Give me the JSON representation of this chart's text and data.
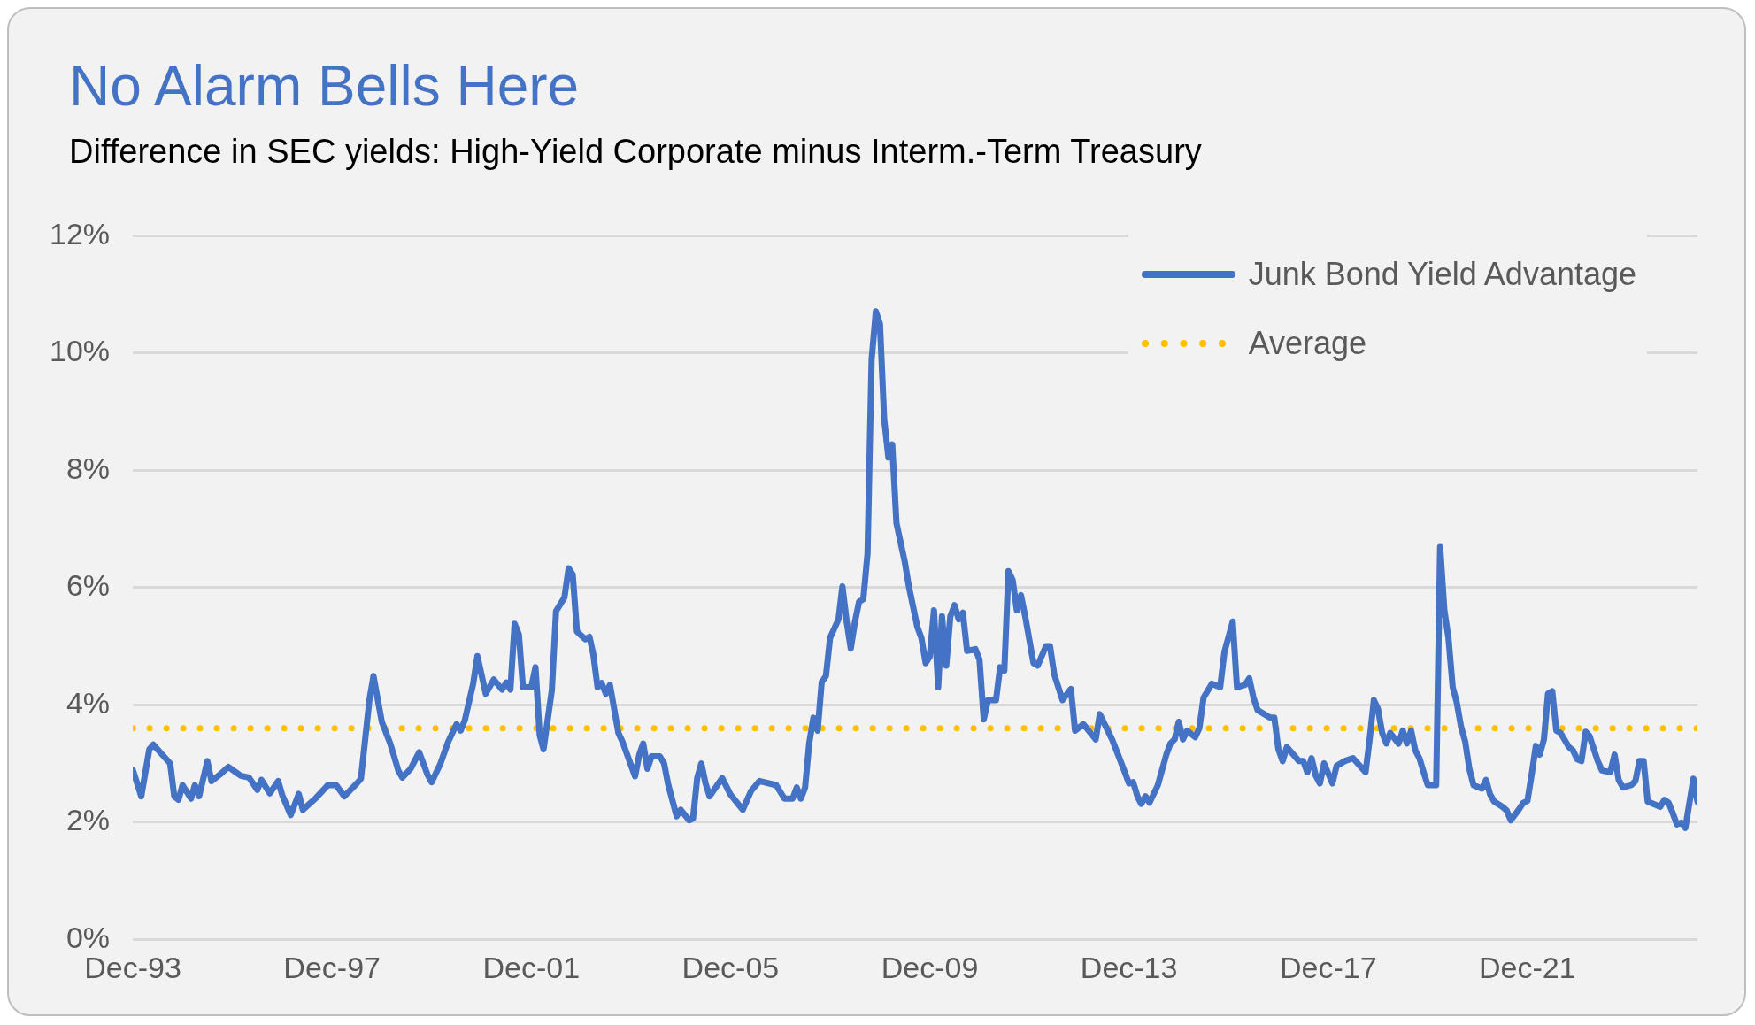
{
  "chart_data": {
    "type": "line",
    "title": "No Alarm Bells Here",
    "subtitle": "Difference in SEC yields: High-Yield Corporate minus Interm.-Term Treasury",
    "xlim": [
      "1993-12",
      "2025-05"
    ],
    "xticks": [
      {
        "value": "1993-12",
        "label": "Dec-93"
      },
      {
        "value": "1997-12",
        "label": "Dec-97"
      },
      {
        "value": "2001-12",
        "label": "Dec-01"
      },
      {
        "value": "2005-12",
        "label": "Dec-05"
      },
      {
        "value": "2009-12",
        "label": "Dec-09"
      },
      {
        "value": "2013-12",
        "label": "Dec-13"
      },
      {
        "value": "2017-12",
        "label": "Dec-17"
      },
      {
        "value": "2021-12",
        "label": "Dec-21"
      }
    ],
    "ylim": [
      0,
      12
    ],
    "yticks": [
      {
        "value": 0,
        "label": "0%"
      },
      {
        "value": 2,
        "label": "2%"
      },
      {
        "value": 4,
        "label": "4%"
      },
      {
        "value": 6,
        "label": "6%"
      },
      {
        "value": 8,
        "label": "8%"
      },
      {
        "value": 10,
        "label": "10%"
      },
      {
        "value": 12,
        "label": "12%"
      }
    ],
    "grid": "y",
    "legend": "top right",
    "marker": "none",
    "line_style": "solid",
    "ref_lines": [
      {
        "axis": "y",
        "value": 3.6,
        "label": "Average",
        "color": "#ffc000",
        "line_style": "dotted"
      }
    ],
    "series": [
      {
        "name": "Junk Bond Yield Advantage",
        "color": "#4472c4",
        "x": [
          "1993-12",
          "1994-02",
          "1994-04",
          "1994-05",
          "1994-09",
          "1994-10",
          "1994-11",
          "1994-12",
          "1995-02",
          "1995-03",
          "1995-04",
          "1995-06",
          "1995-07",
          "1995-09",
          "1995-11",
          "1996-02",
          "1996-04",
          "1996-06",
          "1996-07",
          "1996-09",
          "1996-11",
          "1996-12",
          "1997-02",
          "1997-04",
          "1997-05",
          "1997-08",
          "1997-11",
          "1998-01",
          "1998-03",
          "1998-06",
          "1998-07",
          "1998-09",
          "1998-10",
          "1998-12",
          "1999-02",
          "1999-04",
          "1999-05",
          "1999-07",
          "1999-09",
          "1999-11",
          "1999-12",
          "2000-02",
          "2000-04",
          "2000-06",
          "2000-07",
          "2000-08",
          "2000-10",
          "2000-11",
          "2001-01",
          "2001-03",
          "2001-05",
          "2001-06",
          "2001-07",
          "2001-08",
          "2001-09",
          "2001-10",
          "2001-12",
          "2002-01",
          "2002-02",
          "2002-03",
          "2002-05",
          "2002-06",
          "2002-08",
          "2002-09",
          "2002-10",
          "2002-11",
          "2003-01",
          "2003-02",
          "2003-03",
          "2003-04",
          "2003-05",
          "2003-06",
          "2003-07",
          "2003-09",
          "2003-10",
          "2004-01",
          "2004-02",
          "2004-03",
          "2004-04",
          "2004-05",
          "2004-07",
          "2004-08",
          "2004-09",
          "2004-11",
          "2004-12",
          "2005-02",
          "2005-03",
          "2005-04",
          "2005-05",
          "2005-06",
          "2005-07",
          "2005-10",
          "2005-12",
          "2006-02",
          "2006-03",
          "2006-05",
          "2006-07",
          "2006-11",
          "2007-01",
          "2007-03",
          "2007-04",
          "2007-05",
          "2007-06",
          "2007-07",
          "2007-08",
          "2007-09",
          "2007-10",
          "2007-11",
          "2007-12",
          "2008-02",
          "2008-03",
          "2008-04",
          "2008-05",
          "2008-06",
          "2008-07",
          "2008-08",
          "2008-09",
          "2008-10",
          "2008-11",
          "2008-12",
          "2009-01",
          "2009-02",
          "2009-03",
          "2009-04",
          "2009-06",
          "2009-07",
          "2009-09",
          "2009-10",
          "2009-11",
          "2009-12",
          "2010-01",
          "2010-02",
          "2010-03",
          "2010-04",
          "2010-05",
          "2010-06",
          "2010-07",
          "2010-08",
          "2010-09",
          "2010-11",
          "2010-12",
          "2011-01",
          "2011-02",
          "2011-04",
          "2011-05",
          "2011-06",
          "2011-07",
          "2011-08",
          "2011-09",
          "2011-10",
          "2011-11",
          "2012-01",
          "2012-02",
          "2012-04",
          "2012-05",
          "2012-06",
          "2012-08",
          "2012-10",
          "2012-11",
          "2013-01",
          "2013-03",
          "2013-04",
          "2013-05",
          "2013-08",
          "2013-11",
          "2013-12",
          "2014-01",
          "2014-02",
          "2014-03",
          "2014-04",
          "2014-05",
          "2014-07",
          "2014-09",
          "2014-10",
          "2014-11",
          "2014-12",
          "2015-01",
          "2015-02",
          "2015-04",
          "2015-05",
          "2015-06",
          "2015-08",
          "2015-10",
          "2015-11",
          "2016-01",
          "2016-02",
          "2016-04",
          "2016-05",
          "2016-06",
          "2016-07",
          "2016-10",
          "2016-11",
          "2016-12",
          "2017-01",
          "2017-02",
          "2017-05",
          "2017-06",
          "2017-07",
          "2017-08",
          "2017-09",
          "2017-10",
          "2017-11",
          "2018-01",
          "2018-02",
          "2018-04",
          "2018-06",
          "2018-09",
          "2018-10",
          "2018-11",
          "2018-12",
          "2019-01",
          "2019-02",
          "2019-03",
          "2019-05",
          "2019-06",
          "2019-07",
          "2019-08",
          "2019-09",
          "2019-10",
          "2019-11",
          "2019-12",
          "2020-02",
          "2020-03",
          "2020-04",
          "2020-05",
          "2020-06",
          "2020-07",
          "2020-08",
          "2020-09",
          "2020-10",
          "2020-11",
          "2021-01",
          "2021-02",
          "2021-03",
          "2021-04",
          "2021-06",
          "2021-07",
          "2021-08",
          "2021-10",
          "2021-11",
          "2021-12",
          "2022-01",
          "2022-02",
          "2022-03",
          "2022-04",
          "2022-05",
          "2022-06",
          "2022-07",
          "2022-08",
          "2022-10",
          "2022-11",
          "2022-12",
          "2023-01",
          "2023-02",
          "2023-03",
          "2023-05",
          "2023-06",
          "2023-08",
          "2023-09",
          "2023-10",
          "2023-11",
          "2024-01",
          "2024-02",
          "2024-03",
          "2024-04",
          "2024-05",
          "2024-08",
          "2024-09",
          "2024-10",
          "2024-11",
          "2024-12",
          "2025-01",
          "2025-02",
          "2025-04",
          "2025-05"
        ],
        "values": [
          2.89,
          2.44,
          3.24,
          3.32,
          3.0,
          2.44,
          2.38,
          2.63,
          2.4,
          2.63,
          2.44,
          3.04,
          2.7,
          2.81,
          2.94,
          2.79,
          2.76,
          2.55,
          2.72,
          2.49,
          2.7,
          2.46,
          2.12,
          2.48,
          2.21,
          2.4,
          2.63,
          2.63,
          2.44,
          2.66,
          2.74,
          4.08,
          4.49,
          3.71,
          3.34,
          2.88,
          2.76,
          2.91,
          3.19,
          2.81,
          2.68,
          2.98,
          3.37,
          3.67,
          3.56,
          3.74,
          4.36,
          4.83,
          4.19,
          4.43,
          4.26,
          4.38,
          4.26,
          5.38,
          5.2,
          4.3,
          4.3,
          4.64,
          3.48,
          3.24,
          4.25,
          5.6,
          5.83,
          6.33,
          6.22,
          5.25,
          5.12,
          5.16,
          4.86,
          4.3,
          4.37,
          4.19,
          4.34,
          3.52,
          3.37,
          2.78,
          3.15,
          3.34,
          2.91,
          3.12,
          3.12,
          3.0,
          2.63,
          2.1,
          2.21,
          2.03,
          2.06,
          2.75,
          3.0,
          2.66,
          2.44,
          2.75,
          2.47,
          2.29,
          2.21,
          2.53,
          2.7,
          2.63,
          2.4,
          2.4,
          2.59,
          2.4,
          2.59,
          3.34,
          3.78,
          3.56,
          4.39,
          4.49,
          5.14,
          5.46,
          6.02,
          5.42,
          4.96,
          5.42,
          5.76,
          5.8,
          6.58,
          9.89,
          10.71,
          10.5,
          8.87,
          8.22,
          8.44,
          7.1,
          6.44,
          6.02,
          5.33,
          5.14,
          4.71,
          4.82,
          5.61,
          4.3,
          5.51,
          4.67,
          5.51,
          5.7,
          5.46,
          5.57,
          4.92,
          4.95,
          4.77,
          3.75,
          4.08,
          4.08,
          4.64,
          4.58,
          6.28,
          6.13,
          5.61,
          5.87,
          5.51,
          4.71,
          4.67,
          5.0,
          5.0,
          4.52,
          4.08,
          4.27,
          3.56,
          3.67,
          3.5,
          3.41,
          3.84,
          3.4,
          2.85,
          2.66,
          2.68,
          2.44,
          2.31,
          2.44,
          2.33,
          2.63,
          3.15,
          3.34,
          3.41,
          3.71,
          3.41,
          3.56,
          3.45,
          3.6,
          4.12,
          4.36,
          4.3,
          4.9,
          5.42,
          4.3,
          4.34,
          4.45,
          4.12,
          3.91,
          3.78,
          3.78,
          3.24,
          3.04,
          3.28,
          3.04,
          3.04,
          2.85,
          3.09,
          2.79,
          2.66,
          3.0,
          2.66,
          2.96,
          3.04,
          3.09,
          2.85,
          3.41,
          4.08,
          3.93,
          3.52,
          3.34,
          3.52,
          3.34,
          3.56,
          3.34,
          3.56,
          3.22,
          3.09,
          2.85,
          2.63,
          2.63,
          6.69,
          5.61,
          5.14,
          4.3,
          4.04,
          3.63,
          3.37,
          2.91,
          2.63,
          2.57,
          2.72,
          2.48,
          2.35,
          2.26,
          2.2,
          2.03,
          2.22,
          2.33,
          2.36,
          2.81,
          3.3,
          3.15,
          3.41,
          4.19,
          4.23,
          3.56,
          3.52,
          3.28,
          3.22,
          3.07,
          3.04,
          3.54,
          3.47,
          3.04,
          2.88,
          2.85,
          3.15,
          2.72,
          2.59,
          2.63,
          2.7,
          3.04,
          3.04,
          2.35,
          2.26,
          2.38,
          2.33,
          2.15,
          1.96,
          1.99,
          1.9,
          2.74,
          2.35
        ]
      }
    ]
  }
}
